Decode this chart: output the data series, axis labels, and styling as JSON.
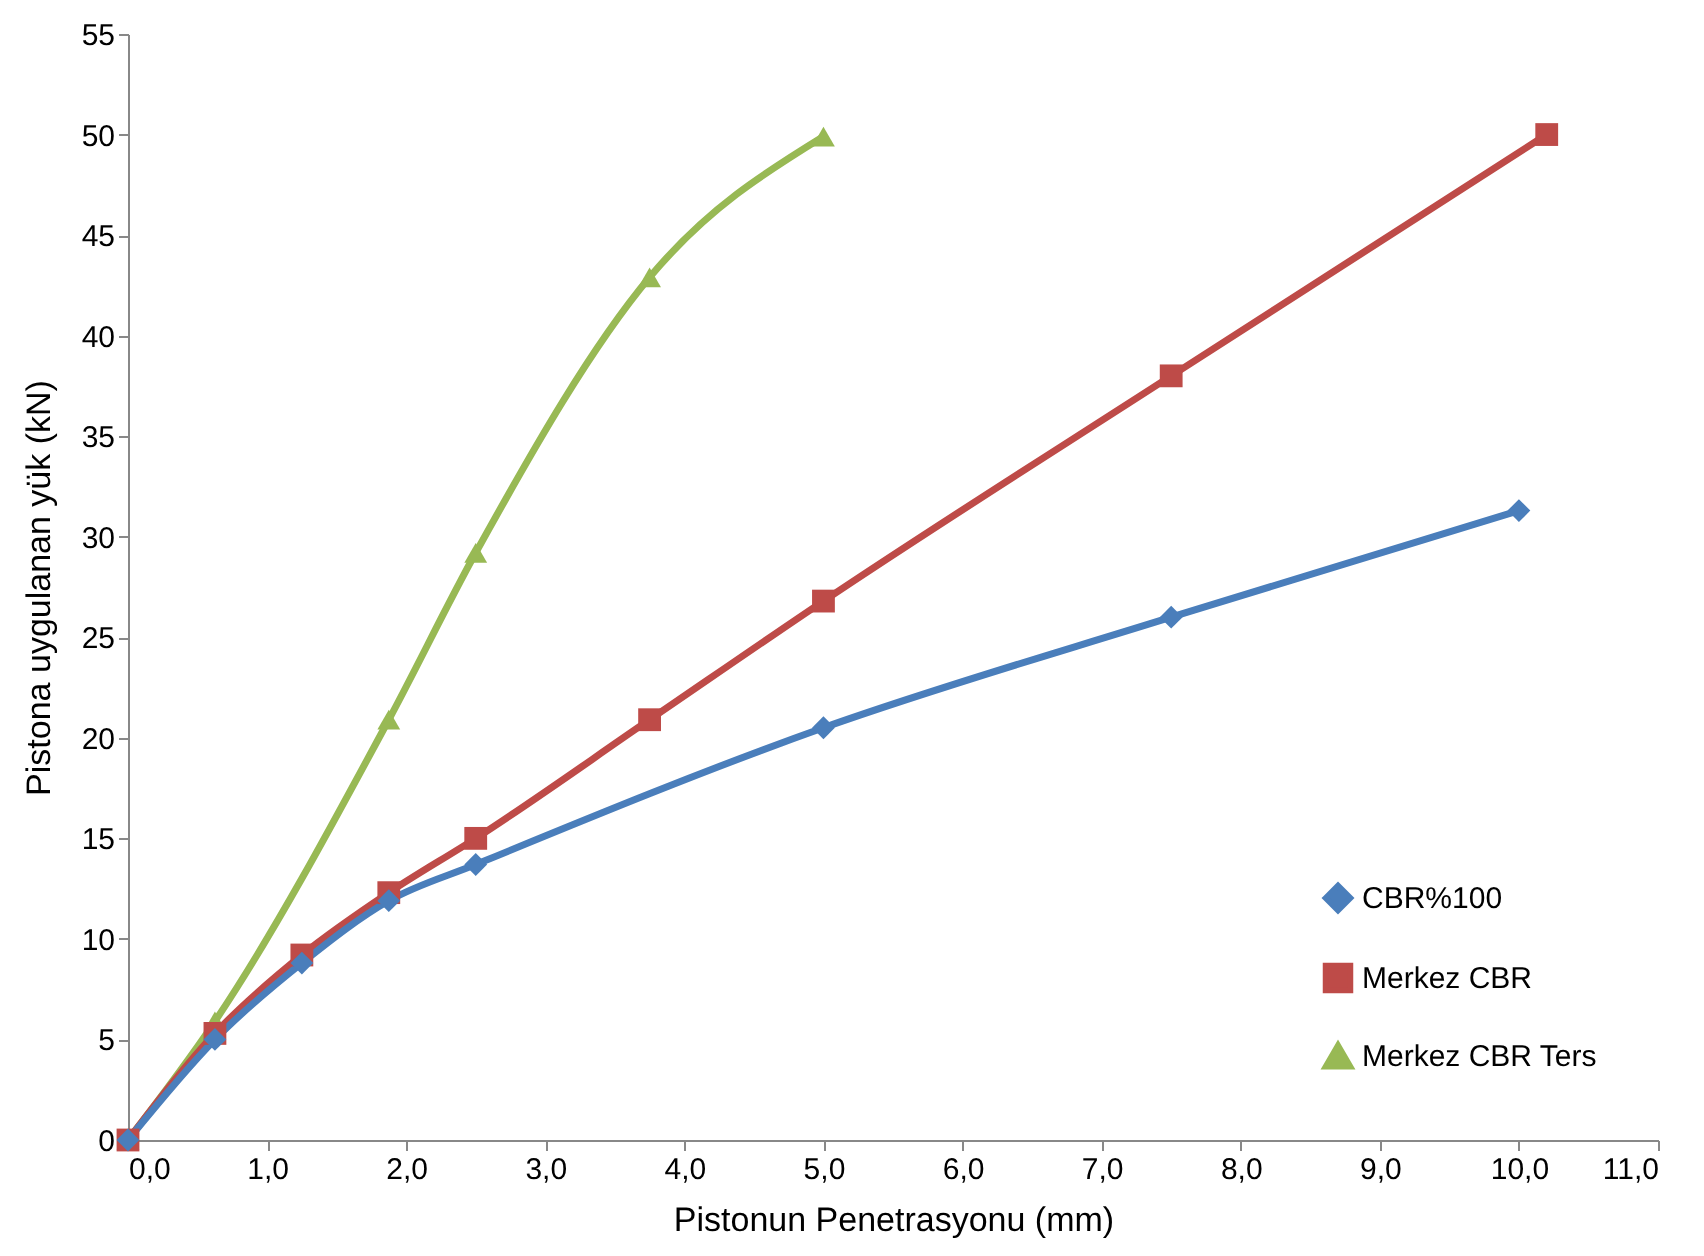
{
  "chart_data": {
    "type": "line",
    "xlabel": "Pistonun Penetrasyonu (mm)",
    "ylabel": "Pistona uygulanan yük  (kN)",
    "xlim": [
      0,
      11
    ],
    "xticks": [
      {
        "value": 0,
        "label": "0,0"
      },
      {
        "value": 1,
        "label": "1,0"
      },
      {
        "value": 2,
        "label": "2,0"
      },
      {
        "value": 3,
        "label": "3,0"
      },
      {
        "value": 4,
        "label": "4,0"
      },
      {
        "value": 5,
        "label": "5,0"
      },
      {
        "value": 6,
        "label": "6,0"
      },
      {
        "value": 7,
        "label": "7,0"
      },
      {
        "value": 8,
        "label": "8,0"
      },
      {
        "value": 9,
        "label": "9,0"
      },
      {
        "value": 10,
        "label": "10,0"
      },
      {
        "value": 11,
        "label": "11,0"
      }
    ],
    "ylim": [
      0,
      55
    ],
    "yticks": [
      0,
      5,
      10,
      15,
      20,
      25,
      30,
      35,
      40,
      45,
      50,
      55
    ],
    "grid": false,
    "legend": "bottom right",
    "line_style": "solid",
    "series": [
      {
        "name": "CBR%100",
        "color": "#4a7ebb",
        "marker": "diamond",
        "x": [
          0,
          0.625,
          1.25,
          1.875,
          2.5,
          5,
          7.5,
          10
        ],
        "values": [
          0,
          5,
          8.8,
          11.9,
          13.7,
          20.5,
          26,
          31.3
        ]
      },
      {
        "name": "Merkez CBR",
        "color": "#be4b48",
        "marker": "square",
        "x": [
          0,
          0.625,
          1.25,
          1.875,
          2.5,
          3.75,
          5,
          7.5,
          10.2
        ],
        "values": [
          0,
          5.3,
          9.2,
          12.3,
          15,
          20.9,
          26.8,
          38,
          50
        ]
      },
      {
        "name": "Merkez CBR Ters",
        "color": "#98b954",
        "marker": "triangle",
        "x": [
          0,
          0.625,
          1.875,
          2.5,
          3.75,
          5
        ],
        "values": [
          0,
          5.9,
          20.9,
          29.2,
          42.9,
          49.9
        ]
      }
    ]
  }
}
